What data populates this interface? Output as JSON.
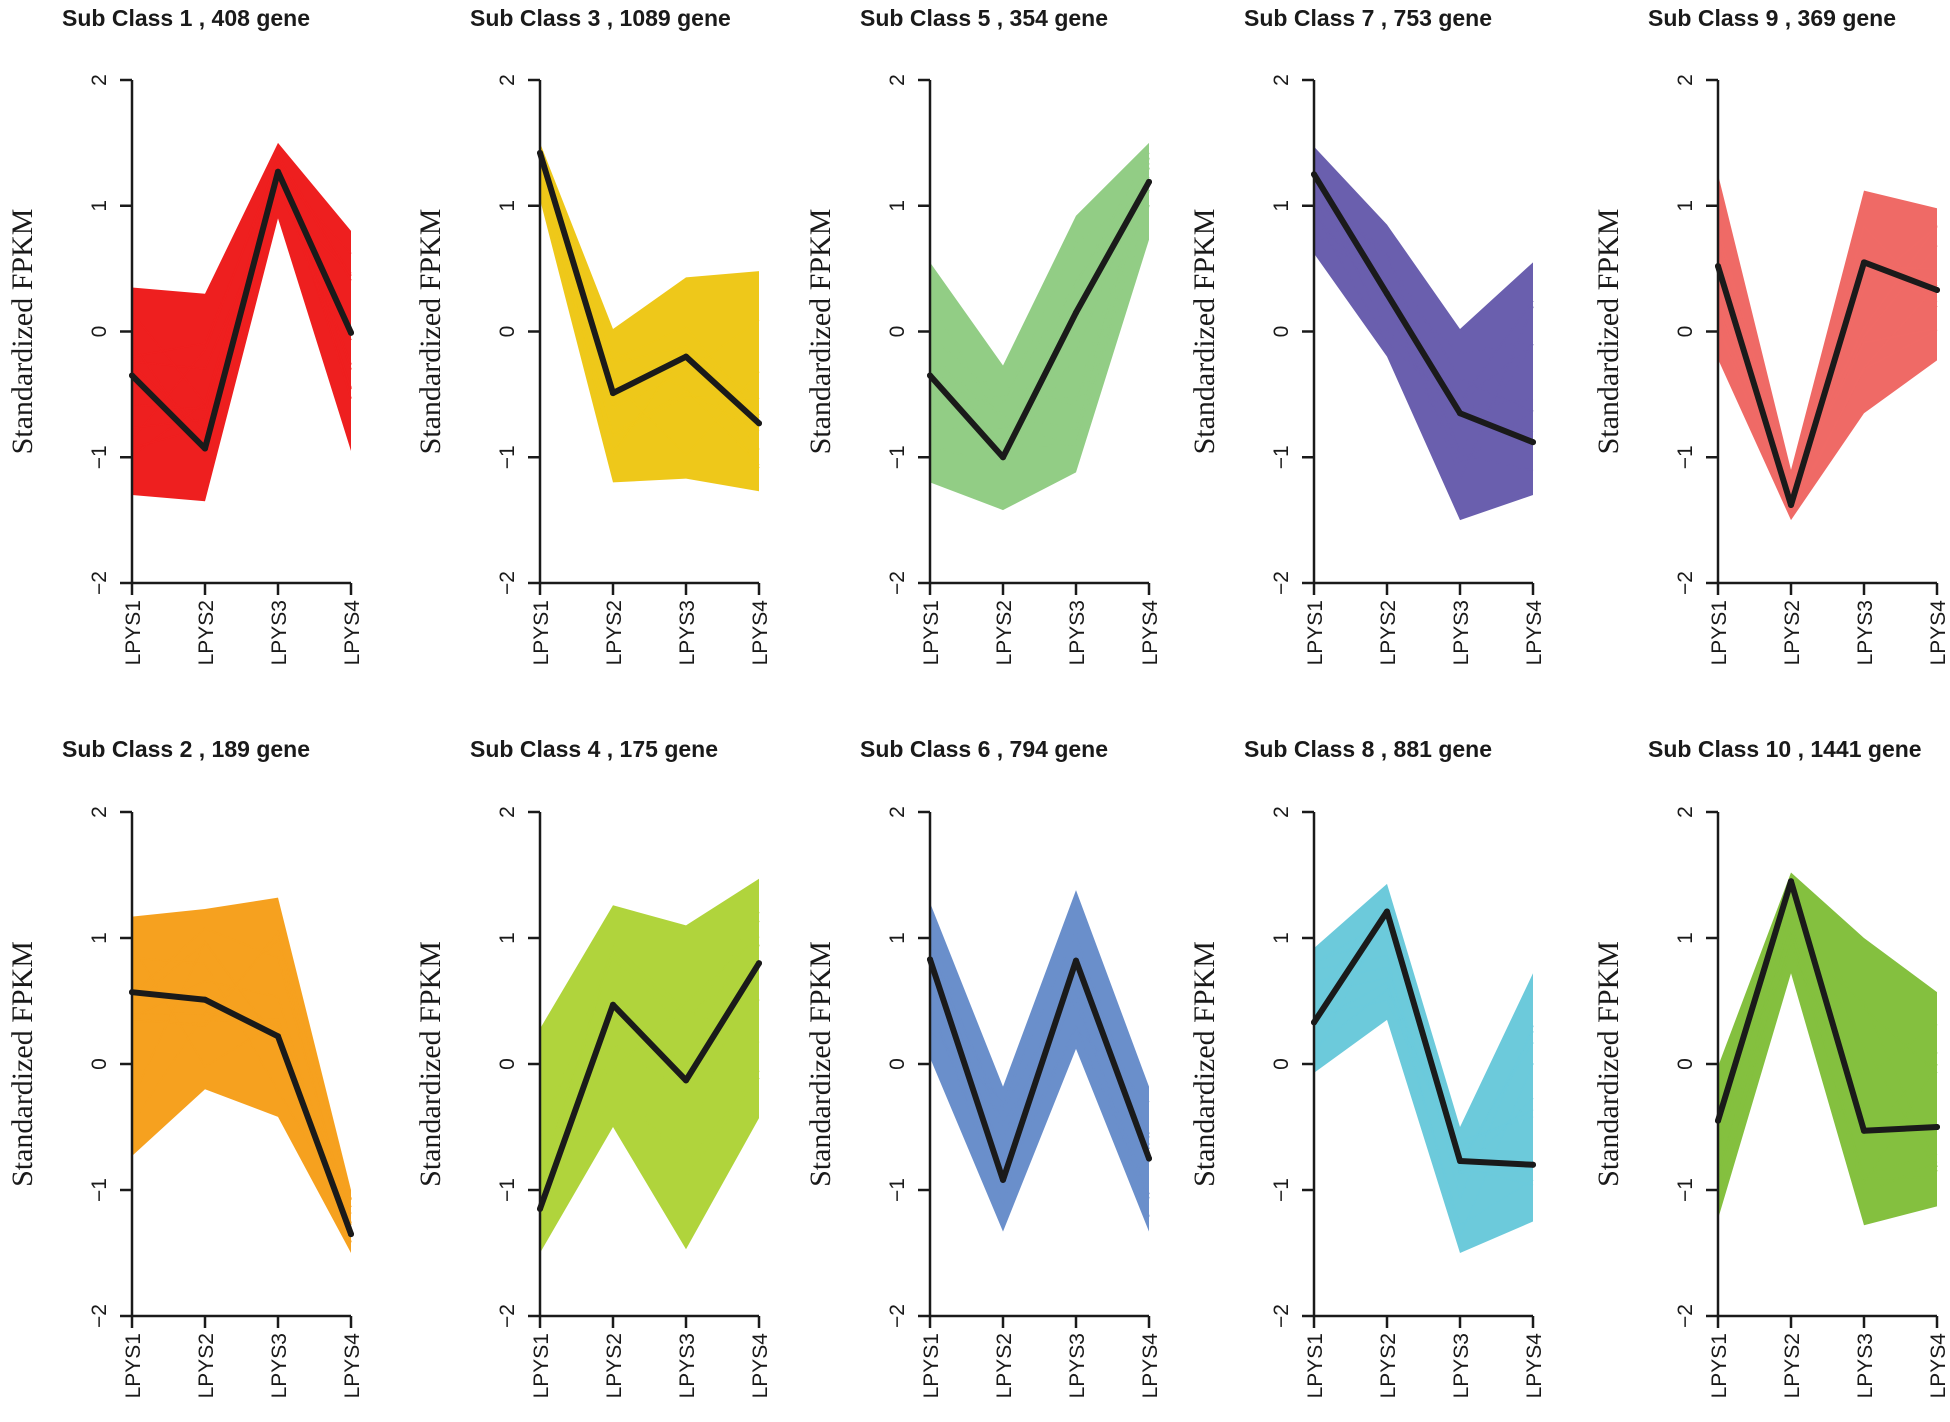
{
  "figure": {
    "ylabel": "Standardized FPKM",
    "title_template": "Sub Class {n} , {g} gene"
  },
  "chart_data": [
    {
      "type": "line",
      "id": 1,
      "title": "Sub Class  1  , 408 gene",
      "color": "#ee1f1f",
      "categories": [
        "LPYS1",
        "LPYS2",
        "LPYS3",
        "LPYS4"
      ],
      "ylabel": "Standardized FPKM",
      "ylim": [
        -2,
        2
      ],
      "yticks": [
        -2,
        -1,
        0,
        1,
        2
      ],
      "center": [
        -0.35,
        -0.93,
        1.27,
        -0.01
      ],
      "upper": [
        0.35,
        0.3,
        1.5,
        0.8
      ],
      "lower": [
        -1.3,
        -1.35,
        0.9,
        -0.95
      ]
    },
    {
      "type": "line",
      "id": 3,
      "title": "Sub Class  3  , 1089 gene",
      "color": "#eec81a",
      "categories": [
        "LPYS1",
        "LPYS2",
        "LPYS3",
        "LPYS4"
      ],
      "ylabel": "Standardized FPKM",
      "ylim": [
        -2,
        2
      ],
      "yticks": [
        -2,
        -1,
        0,
        1,
        2
      ],
      "center": [
        1.42,
        -0.49,
        -0.2,
        -0.73
      ],
      "upper": [
        1.5,
        0.02,
        0.43,
        0.48
      ],
      "lower": [
        1.05,
        -1.2,
        -1.17,
        -1.27
      ]
    },
    {
      "type": "line",
      "id": 5,
      "title": "Sub Class  5  , 354 gene",
      "color": "#92cd85",
      "categories": [
        "LPYS1",
        "LPYS2",
        "LPYS3",
        "LPYS4"
      ],
      "ylabel": "Standardized FPKM",
      "ylim": [
        -2,
        2
      ],
      "yticks": [
        -2,
        -1,
        0,
        1,
        2
      ],
      "center": [
        -0.35,
        -1.0,
        0.15,
        1.19
      ],
      "upper": [
        0.55,
        -0.27,
        0.92,
        1.5
      ],
      "lower": [
        -1.2,
        -1.42,
        -1.12,
        0.73
      ]
    },
    {
      "type": "line",
      "id": 7,
      "title": "Sub Class  7  , 753 gene",
      "color": "#6a5fae",
      "categories": [
        "LPYS1",
        "LPYS2",
        "LPYS3",
        "LPYS4"
      ],
      "ylabel": "Standardized FPKM",
      "ylim": [
        -2,
        2
      ],
      "yticks": [
        -2,
        -1,
        0,
        1,
        2
      ],
      "center": [
        1.25,
        0.3,
        -0.65,
        -0.88
      ],
      "upper": [
        1.47,
        0.85,
        0.02,
        0.55
      ],
      "lower": [
        0.62,
        -0.2,
        -1.5,
        -1.3
      ]
    },
    {
      "type": "line",
      "id": 9,
      "title": "Sub Class  9  , 369 gene",
      "color": "#ef6a66",
      "categories": [
        "LPYS1",
        "LPYS2",
        "LPYS3",
        "LPYS4"
      ],
      "ylabel": "Standardized FPKM",
      "ylim": [
        -2,
        2
      ],
      "yticks": [
        -2,
        -1,
        0,
        1,
        2
      ],
      "center": [
        0.52,
        -1.38,
        0.55,
        0.33
      ],
      "upper": [
        1.25,
        -1.1,
        1.12,
        0.98
      ],
      "lower": [
        -0.22,
        -1.5,
        -0.65,
        -0.23
      ]
    },
    {
      "type": "line",
      "id": 2,
      "title": "Sub Class  2  , 189 gene",
      "color": "#f6a11f",
      "categories": [
        "LPYS1",
        "LPYS2",
        "LPYS3",
        "LPYS4"
      ],
      "ylabel": "Standardized FPKM",
      "ylim": [
        -2,
        2
      ],
      "yticks": [
        -2,
        -1,
        0,
        1,
        2
      ],
      "center": [
        0.57,
        0.51,
        0.22,
        -1.35
      ],
      "upper": [
        1.17,
        1.23,
        1.32,
        -1.0
      ],
      "lower": [
        -0.73,
        -0.2,
        -0.42,
        -1.5
      ]
    },
    {
      "type": "line",
      "id": 4,
      "title": "Sub Class  4  , 175 gene",
      "color": "#b0d43c",
      "categories": [
        "LPYS1",
        "LPYS2",
        "LPYS3",
        "LPYS4"
      ],
      "ylabel": "Standardized FPKM",
      "ylim": [
        -2,
        2
      ],
      "yticks": [
        -2,
        -1,
        0,
        1,
        2
      ],
      "center": [
        -1.15,
        0.47,
        -0.13,
        0.8
      ],
      "upper": [
        0.28,
        1.26,
        1.1,
        1.47
      ],
      "lower": [
        -1.5,
        -0.5,
        -1.47,
        -0.43
      ]
    },
    {
      "type": "line",
      "id": 6,
      "title": "Sub Class  6  , 794 gene",
      "color": "#6a8fcb",
      "categories": [
        "LPYS1",
        "LPYS2",
        "LPYS3",
        "LPYS4"
      ],
      "ylabel": "Standardized FPKM",
      "ylim": [
        -2,
        2
      ],
      "yticks": [
        -2,
        -1,
        0,
        1,
        2
      ],
      "center": [
        0.83,
        -0.92,
        0.82,
        -0.75
      ],
      "upper": [
        1.28,
        -0.18,
        1.38,
        -0.18
      ],
      "lower": [
        0.05,
        -1.33,
        0.12,
        -1.33
      ]
    },
    {
      "type": "line",
      "id": 8,
      "title": "Sub Class  8  , 881 gene",
      "color": "#6ccadb",
      "categories": [
        "LPYS1",
        "LPYS2",
        "LPYS3",
        "LPYS4"
      ],
      "ylabel": "Standardized FPKM",
      "ylim": [
        -2,
        2
      ],
      "yticks": [
        -2,
        -1,
        0,
        1,
        2
      ],
      "center": [
        0.33,
        1.21,
        -0.77,
        -0.8
      ],
      "upper": [
        0.92,
        1.43,
        -0.5,
        0.72
      ],
      "lower": [
        -0.07,
        0.35,
        -1.5,
        -1.25
      ]
    },
    {
      "type": "line",
      "id": 10,
      "title": "Sub Class  10  , 1441 gene",
      "color": "#84c03f",
      "categories": [
        "LPYS1",
        "LPYS2",
        "LPYS3",
        "LPYS4"
      ],
      "ylabel": "Standardized FPKM",
      "ylim": [
        -2,
        2
      ],
      "yticks": [
        -2,
        -1,
        0,
        1,
        2
      ],
      "center": [
        -0.45,
        1.45,
        -0.53,
        -0.5
      ],
      "upper": [
        -0.02,
        1.52,
        1.0,
        0.57
      ],
      "lower": [
        -1.23,
        0.72,
        -1.28,
        -1.13
      ]
    }
  ]
}
